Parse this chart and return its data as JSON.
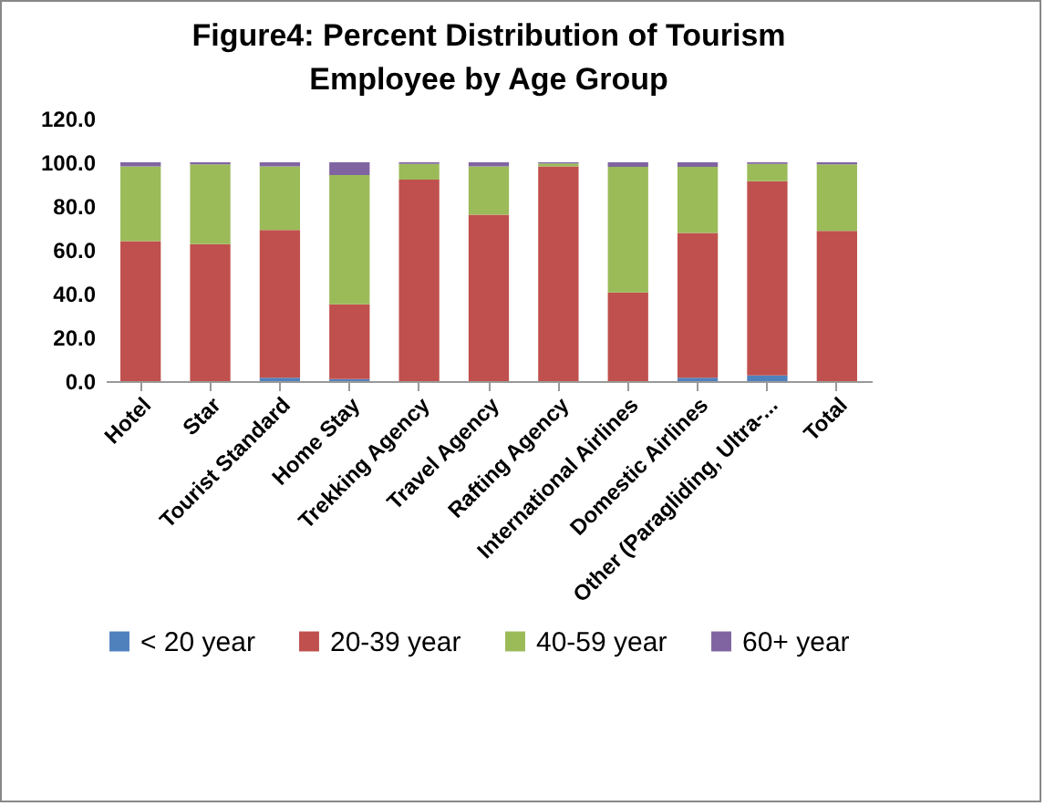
{
  "chart_data": {
    "type": "bar",
    "title": "Figure4: Percent Distribution of Tourism Employee by Age Group",
    "stacked": true,
    "legend": "bottom",
    "grid": false,
    "categories": [
      "Hotel",
      "Star",
      "Tourist Standard",
      "Home Stay",
      "Trekking Agency",
      "Travel Agency",
      "Rafting Agency",
      "International Airlines",
      "Domestic Airlines",
      "Other (Paragliding, Ultra-...",
      "Total"
    ],
    "series": [
      {
        "name": "< 20 year",
        "color": "#4f81bd",
        "values": [
          0,
          0,
          1.6,
          0.9,
          0,
          0,
          0,
          0,
          1.6,
          2.6,
          0
        ]
      },
      {
        "name": "20-39 year",
        "color": "#c0504d",
        "values": [
          64,
          62.6,
          67.5,
          34.2,
          92.1,
          76,
          98.1,
          40.5,
          66.1,
          88.8,
          68.6
        ]
      },
      {
        "name": "40-59 year",
        "color": "#9bbb59",
        "values": [
          34.1,
          36.5,
          29,
          59.1,
          7.2,
          22.1,
          1.4,
          57.4,
          30.2,
          7.9,
          30.5
        ]
      },
      {
        "name": "60+ year",
        "color": "#8064a2",
        "values": [
          1.9,
          0.9,
          1.9,
          5.8,
          0.7,
          1.9,
          0.5,
          2.1,
          2.1,
          0.7,
          0.9
        ]
      }
    ],
    "ylim": [
      0,
      120
    ],
    "yticks": [
      {
        "value": 0,
        "label": "0.0"
      },
      {
        "value": 20,
        "label": "20.0"
      },
      {
        "value": 40,
        "label": "40.0"
      },
      {
        "value": 60,
        "label": "60.0"
      },
      {
        "value": 80,
        "label": "80.0"
      },
      {
        "value": 100,
        "label": "100.0"
      },
      {
        "value": 120,
        "label": "120.0"
      }
    ]
  }
}
